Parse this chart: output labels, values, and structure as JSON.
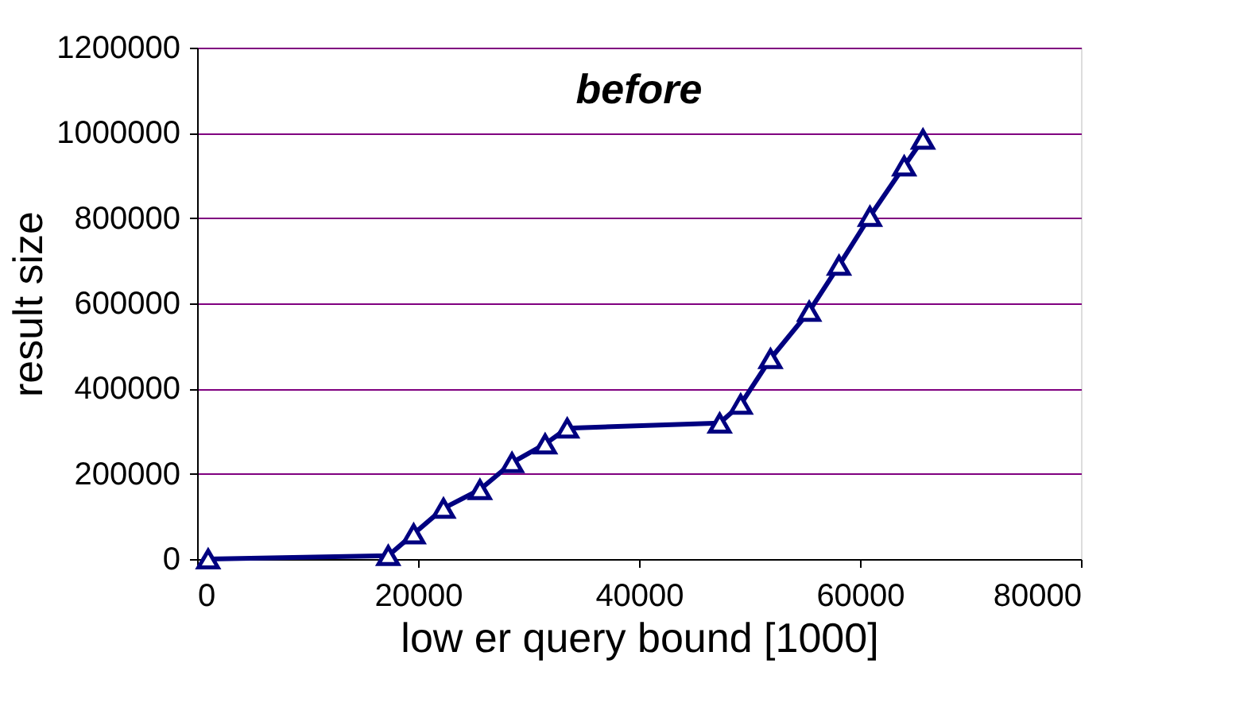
{
  "chart_data": {
    "type": "line",
    "title": "before",
    "xlabel": "low er query bound [1000]",
    "ylabel": "result size",
    "x": [
      1000,
      17300,
      19600,
      22300,
      25600,
      28500,
      31500,
      33500,
      47300,
      49200,
      51900,
      55400,
      58100,
      60900,
      64000,
      65700
    ],
    "series": [
      {
        "color": "#000080",
        "values": [
          0,
          8000,
          59000,
          119000,
          163000,
          226000,
          270000,
          307000,
          319000,
          363000,
          470000,
          581000,
          689000,
          804000,
          922000,
          985000
        ]
      }
    ],
    "xlim": [
      0,
      80000
    ],
    "xticks": [
      0,
      20000,
      40000,
      60000,
      80000
    ],
    "ylim": [
      0,
      1200000
    ],
    "yticks": [
      0,
      200000,
      400000,
      600000,
      800000,
      1000000,
      1200000
    ],
    "grid": "y",
    "marker": "triangle",
    "line_style": "solid"
  }
}
